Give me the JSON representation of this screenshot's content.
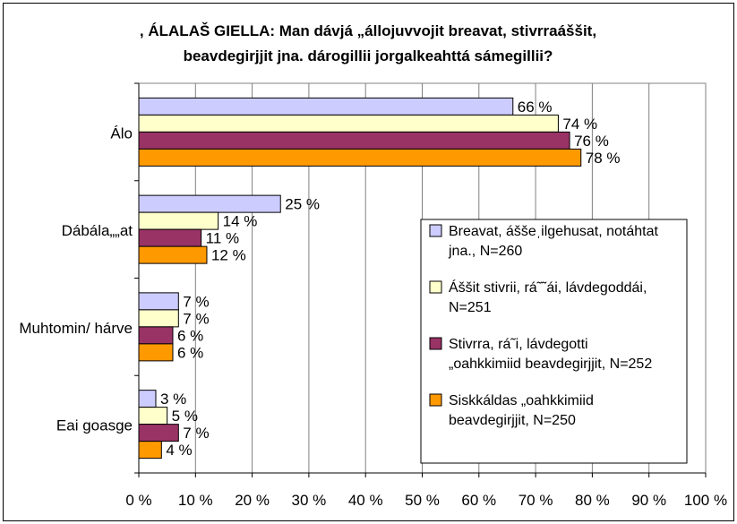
{
  "title_lines": [
    ", ÁLALAŠ GIELLA: Man dávjá „állojuvvojit breavat, stivrraáššit,",
    "beavdegirjjit jna. dárogillii jorgalkeahttá sámegillii?"
  ],
  "colors": {
    "border": "#000000",
    "grid": "#808080",
    "series": [
      "#CCCCFF",
      "#FFFFCC",
      "#993366",
      "#FF9900"
    ]
  },
  "chart_data": {
    "type": "bar",
    "orientation": "horizontal",
    "categories": [
      "Álo",
      "Dábála„„at",
      "Muhtomin/ hárve",
      "Eai goasge"
    ],
    "series": [
      {
        "name": "Breavat, áššeˌilgehusat, notáhtat jna., N=260",
        "legend_lines": [
          "Breavat, áššeˌilgehusat, notáhtat",
          "jna., N=260"
        ],
        "values": [
          66,
          25,
          7,
          3
        ]
      },
      {
        "name": "Áššit stivrii, rá˜˜ái, lávdegoddái, N=251",
        "legend_lines": [
          "Áššit stivrii, rá˜˜ái, lávdegoddái,",
          "N=251"
        ],
        "values": [
          74,
          14,
          7,
          5
        ]
      },
      {
        "name": "Stivrra, rá˜i, lávdegotti „oahkkimiid beavdegirjjit, N=252",
        "legend_lines": [
          "Stivrra, rá˜i, lávdegotti",
          "„oahkkimiid beavdegirjjit, N=252"
        ],
        "values": [
          76,
          11,
          6,
          7
        ]
      },
      {
        "name": "Siskkáldas „oahkkimiid beavdegirjjit, N=250",
        "legend_lines": [
          "Siskkáldas „oahkkimiid",
          "beavdegirjjit, N=250"
        ],
        "values": [
          78,
          12,
          6,
          4
        ]
      }
    ],
    "value_suffix": " %",
    "xlim": [
      0,
      100
    ],
    "xticks": [
      0,
      10,
      20,
      30,
      40,
      50,
      60,
      70,
      80,
      90,
      100
    ],
    "xtick_labels": [
      "0 %",
      "10 %",
      "20 %",
      "30 %",
      "40 %",
      "50 %",
      "60 %",
      "70 %",
      "80 %",
      "90 %",
      "100 %"
    ],
    "grid": "vertical",
    "legend_position": "right"
  }
}
